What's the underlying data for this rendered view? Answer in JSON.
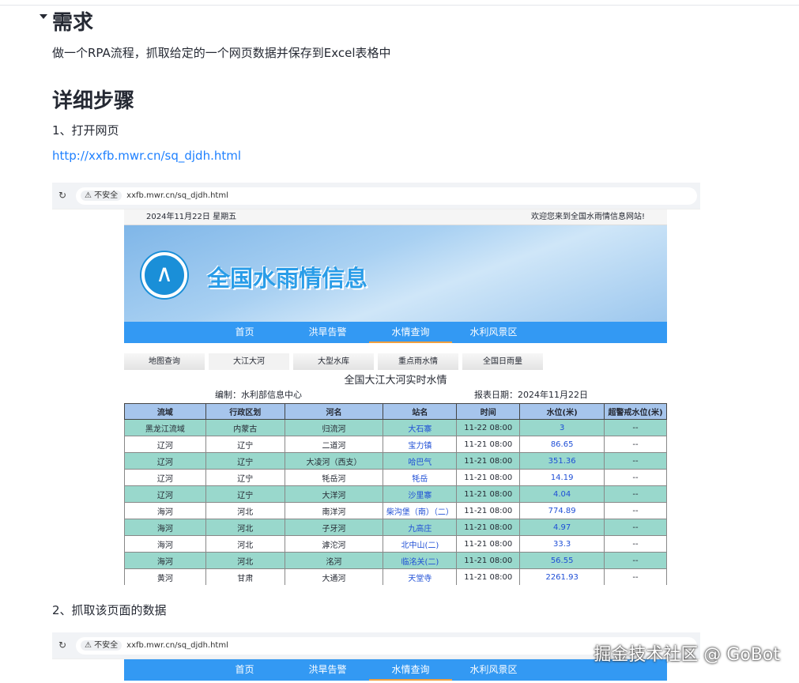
{
  "article": {
    "h1": "需求",
    "intro": "做一个RPA流程，抓取给定的一个网页数据并保存到Excel表格中",
    "h2": "详细步骤",
    "step1": "1、打开网页",
    "link": "http://xxfb.mwr.cn/sq_djdh.html",
    "step2": "2、抓取该页面的数据"
  },
  "browser": {
    "reload_icon": "reload-icon",
    "security": "⚠ 不安全",
    "url": "xxfb.mwr.cn/sq_djdh.html"
  },
  "site": {
    "date": "2024年11月22日 星期五",
    "welcome": "欢迎您来到全国水雨情信息网站!",
    "banner_title": "全国水雨情信息",
    "nav": [
      "首页",
      "洪旱告警",
      "水情查询",
      "水利风景区"
    ],
    "active_nav": "水情查询",
    "subtabs": [
      "地图查询",
      "大江大河",
      "大型水库",
      "重点雨水情",
      "全国日雨量"
    ],
    "table_title": "全国大江大河实时水情",
    "editor": "编制：水利部信息中心",
    "report_date": "报表日期：2024年11月22日",
    "columns": [
      "流域",
      "行政区划",
      "河名",
      "站名",
      "时间",
      "水位(米)",
      "超警戒水位(米)"
    ],
    "rows": [
      [
        "黑龙江流域",
        "内蒙古",
        "归流河",
        "大石寨",
        "11-22 08:00",
        "3",
        "--"
      ],
      [
        "辽河",
        "辽宁",
        "二道河",
        "宝力镇",
        "11-21 08:00",
        "86.65",
        "--"
      ],
      [
        "辽河",
        "辽宁",
        "大凌河（西支）",
        "哈巴气",
        "11-21 08:00",
        "351.36",
        "--"
      ],
      [
        "辽河",
        "辽宁",
        "牦岳河",
        "牦岳",
        "11-21 08:00",
        "14.19",
        "--"
      ],
      [
        "辽河",
        "辽宁",
        "大洋河",
        "沙里寨",
        "11-21 08:00",
        "4.04",
        "--"
      ],
      [
        "海河",
        "河北",
        "南洋河",
        "柴沟堡（南）（二）",
        "11-21 08:00",
        "774.89",
        "--"
      ],
      [
        "海河",
        "河北",
        "子牙河",
        "九高庄",
        "11-21 08:00",
        "4.97",
        "--"
      ],
      [
        "海河",
        "河北",
        "滹沱河",
        "北中山(二)",
        "11-21 08:00",
        "33.3",
        "--"
      ],
      [
        "海河",
        "河北",
        "洺河",
        "临洺关(二)",
        "11-21 08:00",
        "56.55",
        "--"
      ],
      [
        "黄河",
        "甘肃",
        "大通河",
        "天堂寺",
        "11-21 08:00",
        "2261.93",
        "--"
      ]
    ]
  },
  "watermark": "掘金技术社区 @ GoBot"
}
